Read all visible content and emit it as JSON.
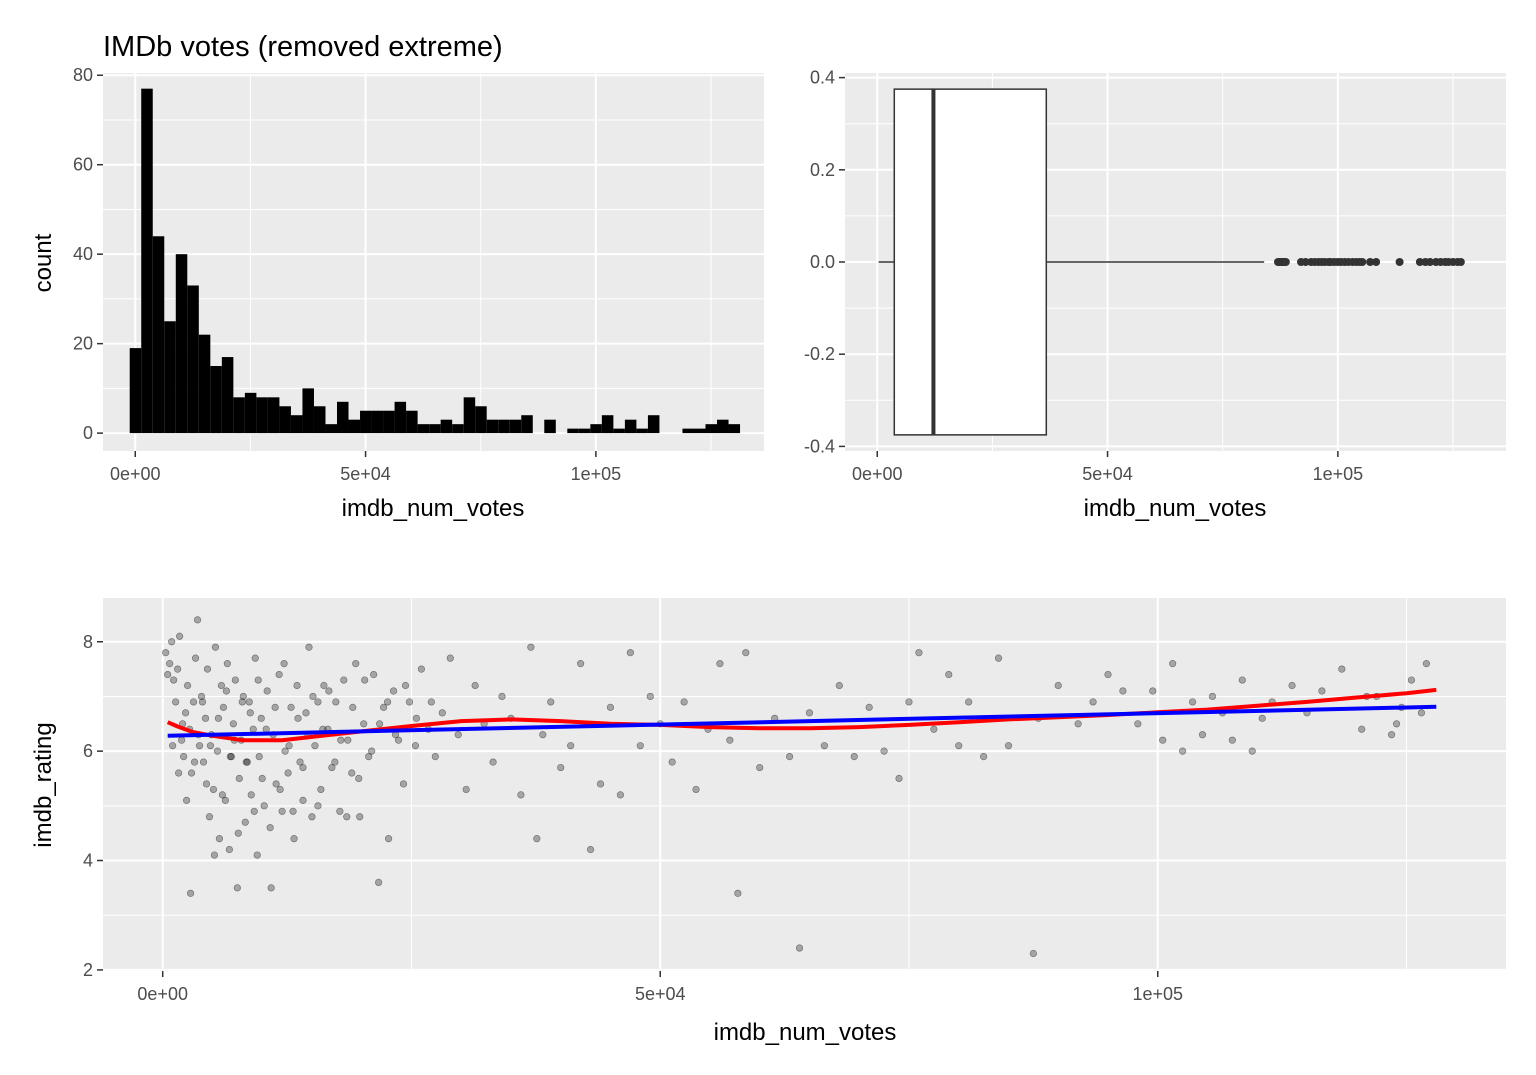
{
  "chart_data": [
    {
      "type": "bar",
      "title": "IMDb votes (removed extreme)",
      "xlabel": "imdb_num_votes",
      "ylabel": "count",
      "xlim": [
        -7000,
        136500
      ],
      "ylim": [
        -4,
        80.5
      ],
      "xticks": [
        0,
        50000,
        100000
      ],
      "xtick_labels": [
        "0e+00",
        "5e+04",
        "1e+05"
      ],
      "yticks": [
        0,
        20,
        40,
        60,
        80
      ],
      "ytick_labels": [
        "0",
        "20",
        "40",
        "60",
        "80"
      ],
      "bin_start": -1200,
      "bin_width": 2500,
      "values": [
        19,
        77,
        44,
        25,
        40,
        33,
        22,
        15,
        17,
        8,
        9,
        8,
        8,
        6,
        4,
        10,
        6,
        2,
        7,
        3,
        5,
        5,
        5,
        7,
        5,
        2,
        2,
        3,
        2,
        8,
        6,
        3,
        3,
        3,
        4,
        0,
        3,
        0,
        1,
        1,
        2,
        4,
        1,
        3,
        1,
        4,
        0,
        0,
        1,
        1,
        2,
        3,
        2
      ],
      "fill": "#000000",
      "grid": true,
      "legend": "none"
    },
    {
      "type": "box",
      "xlabel": "imdb_num_votes",
      "ylabel": "",
      "xlim": [
        -7000,
        136500
      ],
      "ylim": [
        -0.41,
        0.41
      ],
      "xticks": [
        0,
        50000,
        100000
      ],
      "xtick_labels": [
        "0e+00",
        "5e+04",
        "1e+05"
      ],
      "yticks": [
        -0.4,
        -0.2,
        0,
        0.2,
        0.4
      ],
      "ytick_labels": [
        "-0.4",
        "-0.2",
        "0.0",
        "0.2",
        "0.4"
      ],
      "whisker_low": 300,
      "q1": 3700,
      "median": 12200,
      "q3": 36700,
      "whisker_high": 84000,
      "box_ymin": -0.375,
      "box_ymax": 0.375,
      "outliers": [
        87000,
        87300,
        87600,
        87900,
        88200,
        88400,
        88700,
        92000,
        93000,
        94200,
        95000,
        95800,
        96500,
        97200,
        98000,
        98400,
        99200,
        100000,
        100700,
        101500,
        102300,
        103200,
        104000,
        104700,
        105300,
        107000,
        108300,
        113400,
        117800,
        119000,
        120000,
        121300,
        122300,
        123300,
        124000,
        125000,
        126000,
        126700
      ],
      "grid": true,
      "legend": "none"
    },
    {
      "type": "scatter",
      "xlabel": "imdb_num_votes",
      "ylabel": "imdb_rating",
      "xlim": [
        -6000,
        135000
      ],
      "ylim": [
        1.98,
        8.8
      ],
      "xticks": [
        0,
        50000,
        100000
      ],
      "xtick_labels": [
        "0e+00",
        "5e+04",
        "1e+05"
      ],
      "yticks": [
        2,
        4,
        6,
        8
      ],
      "ytick_labels": [
        "2",
        "4",
        "6",
        "8"
      ],
      "points": [
        [
          300,
          7.8
        ],
        [
          500,
          7.4
        ],
        [
          700,
          7.6
        ],
        [
          900,
          8.0
        ],
        [
          1100,
          7.3
        ],
        [
          1300,
          6.9
        ],
        [
          1500,
          7.5
        ],
        [
          1700,
          8.1
        ],
        [
          1900,
          6.2
        ],
        [
          2100,
          5.9
        ],
        [
          2300,
          6.7
        ],
        [
          2500,
          7.2
        ],
        [
          2700,
          6.4
        ],
        [
          2900,
          5.6
        ],
        [
          3100,
          6.9
        ],
        [
          3300,
          7.7
        ],
        [
          3500,
          8.4
        ],
        [
          3700,
          6.1
        ],
        [
          3900,
          7.0
        ],
        [
          4100,
          5.8
        ],
        [
          4300,
          6.6
        ],
        [
          4500,
          7.5
        ],
        [
          4700,
          4.8
        ],
        [
          4900,
          6.3
        ],
        [
          5100,
          5.3
        ],
        [
          5300,
          7.9
        ],
        [
          5500,
          6.0
        ],
        [
          5700,
          4.4
        ],
        [
          5900,
          7.2
        ],
        [
          6100,
          6.8
        ],
        [
          6300,
          5.1
        ],
        [
          6500,
          7.6
        ],
        [
          6700,
          4.2
        ],
        [
          6900,
          5.9
        ],
        [
          7100,
          6.5
        ],
        [
          7300,
          7.3
        ],
        [
          7500,
          3.5
        ],
        [
          7700,
          5.5
        ],
        [
          7900,
          6.2
        ],
        [
          8100,
          7.0
        ],
        [
          8300,
          4.7
        ],
        [
          8500,
          5.8
        ],
        [
          8700,
          6.9
        ],
        [
          8900,
          5.2
        ],
        [
          9100,
          6.4
        ],
        [
          9300,
          7.7
        ],
        [
          9500,
          4.1
        ],
        [
          9700,
          5.9
        ],
        [
          9900,
          6.6
        ],
        [
          10200,
          5.0
        ],
        [
          10500,
          7.1
        ],
        [
          10800,
          4.6
        ],
        [
          11100,
          6.3
        ],
        [
          11400,
          5.4
        ],
        [
          11700,
          7.4
        ],
        [
          12000,
          4.9
        ],
        [
          12300,
          6.0
        ],
        [
          12600,
          5.6
        ],
        [
          12900,
          6.8
        ],
        [
          13200,
          4.4
        ],
        [
          13500,
          7.2
        ],
        [
          13800,
          5.8
        ],
        [
          14100,
          5.1
        ],
        [
          14400,
          6.7
        ],
        [
          14700,
          7.9
        ],
        [
          15000,
          4.8
        ],
        [
          15300,
          6.1
        ],
        [
          15600,
          6.9
        ],
        [
          15900,
          5.3
        ],
        [
          16200,
          7.2
        ],
        [
          16600,
          6.4
        ],
        [
          17000,
          5.7
        ],
        [
          17400,
          6.9
        ],
        [
          17800,
          4.9
        ],
        [
          18200,
          7.3
        ],
        [
          18600,
          6.2
        ],
        [
          19000,
          5.6
        ],
        [
          19400,
          7.6
        ],
        [
          19800,
          4.8
        ],
        [
          20200,
          6.5
        ],
        [
          20700,
          5.9
        ],
        [
          21200,
          7.4
        ],
        [
          21700,
          3.6
        ],
        [
          22200,
          6.8
        ],
        [
          22700,
          4.4
        ],
        [
          23200,
          7.1
        ],
        [
          23700,
          6.2
        ],
        [
          24200,
          5.4
        ],
        [
          24800,
          6.9
        ],
        [
          25400,
          6.1
        ],
        [
          26000,
          7.5
        ],
        [
          26700,
          6.4
        ],
        [
          27400,
          5.9
        ],
        [
          28100,
          6.7
        ],
        [
          28900,
          7.7
        ],
        [
          29700,
          6.3
        ],
        [
          30500,
          5.3
        ],
        [
          31400,
          7.2
        ],
        [
          32300,
          6.5
        ],
        [
          33200,
          5.8
        ],
        [
          34100,
          7.0
        ],
        [
          35000,
          6.6
        ],
        [
          36000,
          5.2
        ],
        [
          37000,
          7.9
        ],
        [
          37600,
          4.4
        ],
        [
          38200,
          6.3
        ],
        [
          39000,
          6.9
        ],
        [
          40000,
          5.7
        ],
        [
          41000,
          6.1
        ],
        [
          42000,
          7.6
        ],
        [
          43000,
          4.2
        ],
        [
          44000,
          5.4
        ],
        [
          45000,
          6.8
        ],
        [
          46000,
          5.2
        ],
        [
          47000,
          7.8
        ],
        [
          48000,
          6.1
        ],
        [
          49000,
          7.0
        ],
        [
          50000,
          6.5
        ],
        [
          51200,
          5.8
        ],
        [
          52400,
          6.9
        ],
        [
          53600,
          5.3
        ],
        [
          54800,
          6.4
        ],
        [
          56000,
          7.6
        ],
        [
          57000,
          6.2
        ],
        [
          57800,
          3.4
        ],
        [
          58600,
          7.8
        ],
        [
          60000,
          5.7
        ],
        [
          61500,
          6.6
        ],
        [
          63000,
          5.9
        ],
        [
          64000,
          2.4
        ],
        [
          65000,
          6.7
        ],
        [
          66500,
          6.1
        ],
        [
          68000,
          7.2
        ],
        [
          69500,
          5.9
        ],
        [
          71000,
          6.8
        ],
        [
          72500,
          6.0
        ],
        [
          74000,
          5.5
        ],
        [
          75000,
          6.9
        ],
        [
          76000,
          7.8
        ],
        [
          77500,
          6.4
        ],
        [
          79000,
          7.4
        ],
        [
          80000,
          6.1
        ],
        [
          81000,
          6.9
        ],
        [
          82500,
          5.9
        ],
        [
          84000,
          7.7
        ],
        [
          85000,
          6.1
        ],
        [
          87500,
          2.3
        ],
        [
          88000,
          6.6
        ],
        [
          90000,
          7.2
        ],
        [
          92000,
          6.5
        ],
        [
          93500,
          6.9
        ],
        [
          95000,
          7.4
        ],
        [
          96500,
          7.1
        ],
        [
          98000,
          6.5
        ],
        [
          99500,
          7.1
        ],
        [
          100500,
          6.2
        ],
        [
          101500,
          7.6
        ],
        [
          102500,
          6.0
        ],
        [
          103500,
          6.9
        ],
        [
          104500,
          6.3
        ],
        [
          105500,
          7.0
        ],
        [
          106500,
          6.7
        ],
        [
          107500,
          6.2
        ],
        [
          108500,
          7.3
        ],
        [
          109500,
          6.0
        ],
        [
          110500,
          6.6
        ],
        [
          111500,
          6.9
        ],
        [
          113500,
          7.2
        ],
        [
          115000,
          6.7
        ],
        [
          116500,
          7.1
        ],
        [
          118500,
          7.5
        ],
        [
          120500,
          6.4
        ],
        [
          122000,
          7.0
        ],
        [
          123500,
          6.3
        ],
        [
          124500,
          6.8
        ],
        [
          125500,
          7.3
        ],
        [
          127000,
          7.6
        ],
        [
          126500,
          6.7
        ],
        [
          124000,
          6.5
        ],
        [
          121000,
          7.0
        ],
        [
          1000,
          6.1
        ],
        [
          1600,
          5.6
        ],
        [
          2000,
          6.5
        ],
        [
          2400,
          5.1
        ],
        [
          2800,
          3.4
        ],
        [
          3200,
          5.8
        ],
        [
          3600,
          6.3
        ],
        [
          4000,
          6.9
        ],
        [
          4400,
          5.4
        ],
        [
          4800,
          6.1
        ],
        [
          5200,
          4.1
        ],
        [
          5600,
          6.6
        ],
        [
          6000,
          5.2
        ],
        [
          6400,
          7.1
        ],
        [
          6800,
          5.9
        ],
        [
          7200,
          6.2
        ],
        [
          7600,
          4.5
        ],
        [
          8000,
          6.9
        ],
        [
          8400,
          5.8
        ],
        [
          8800,
          6.7
        ],
        [
          9200,
          4.9
        ],
        [
          9600,
          7.3
        ],
        [
          10000,
          5.5
        ],
        [
          10400,
          6.4
        ],
        [
          10900,
          3.5
        ],
        [
          11300,
          6.8
        ],
        [
          11800,
          5.3
        ],
        [
          12200,
          7.6
        ],
        [
          12700,
          6.1
        ],
        [
          13100,
          4.9
        ],
        [
          13600,
          6.6
        ],
        [
          14100,
          5.7
        ],
        [
          14600,
          6.3
        ],
        [
          15100,
          7.0
        ],
        [
          15600,
          5.0
        ],
        [
          16100,
          6.4
        ],
        [
          16700,
          7.1
        ],
        [
          17300,
          5.8
        ],
        [
          17900,
          6.2
        ],
        [
          18500,
          4.8
        ],
        [
          19100,
          6.8
        ],
        [
          19700,
          5.5
        ],
        [
          20300,
          7.3
        ],
        [
          21000,
          6.0
        ],
        [
          21800,
          6.5
        ],
        [
          22600,
          6.9
        ],
        [
          23400,
          6.3
        ],
        [
          24400,
          7.2
        ],
        [
          25500,
          6.6
        ],
        [
          27000,
          6.9
        ]
      ],
      "point_color": "#000000",
      "point_alpha": 0.3,
      "series": [
        {
          "name": "",
          "color": "#ff0000",
          "x": [
            500,
            1500,
            3000,
            5000,
            8000,
            12000,
            16000,
            20000,
            25000,
            30000,
            35000,
            40000,
            45000,
            50000,
            55000,
            60000,
            65000,
            70000,
            75000,
            80000,
            85000,
            90000,
            95000,
            100000,
            105000,
            110000,
            115000,
            120000,
            125000,
            128000
          ],
          "y": [
            6.53,
            6.45,
            6.35,
            6.28,
            6.2,
            6.2,
            6.28,
            6.36,
            6.46,
            6.55,
            6.58,
            6.55,
            6.5,
            6.48,
            6.44,
            6.42,
            6.42,
            6.44,
            6.48,
            6.53,
            6.58,
            6.62,
            6.66,
            6.71,
            6.76,
            6.83,
            6.9,
            6.98,
            7.06,
            7.12
          ]
        },
        {
          "name": "",
          "color": "#0000ff",
          "x": [
            500,
            128000
          ],
          "y": [
            6.28,
            6.81
          ]
        }
      ],
      "grid": true,
      "legend": "none"
    }
  ]
}
